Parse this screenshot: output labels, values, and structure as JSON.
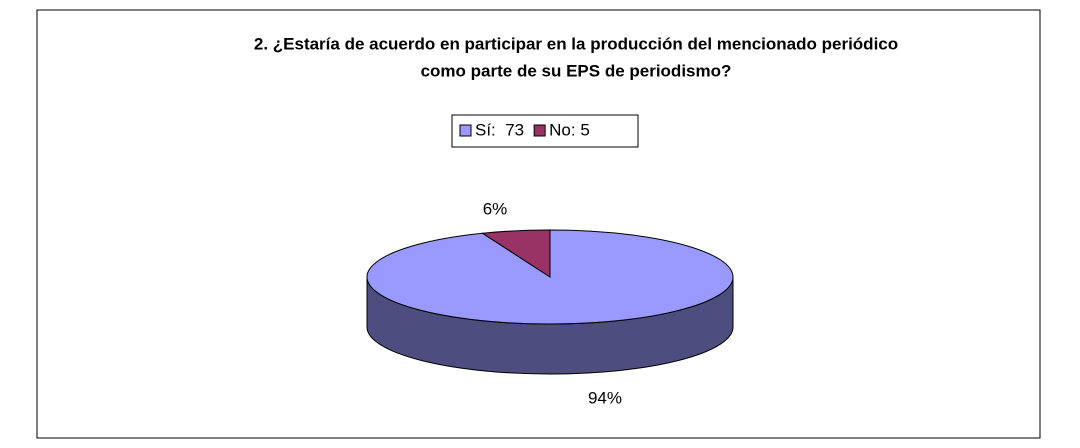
{
  "chart_data": {
    "type": "pie3d",
    "title": [
      "2. ¿Estaría de acuerdo en participar en la producción del mencionado periódico",
      "como parte de su EPS de periodismo?"
    ],
    "categories": [
      "Sí:  73",
      "No: 5"
    ],
    "values": [
      94,
      6
    ],
    "value_labels": [
      "94%",
      "6%"
    ],
    "colors": [
      "#9999ff",
      "#993366"
    ],
    "side_colors": [
      "#4d4d80",
      "#4d1a33"
    ],
    "legend": "top"
  }
}
